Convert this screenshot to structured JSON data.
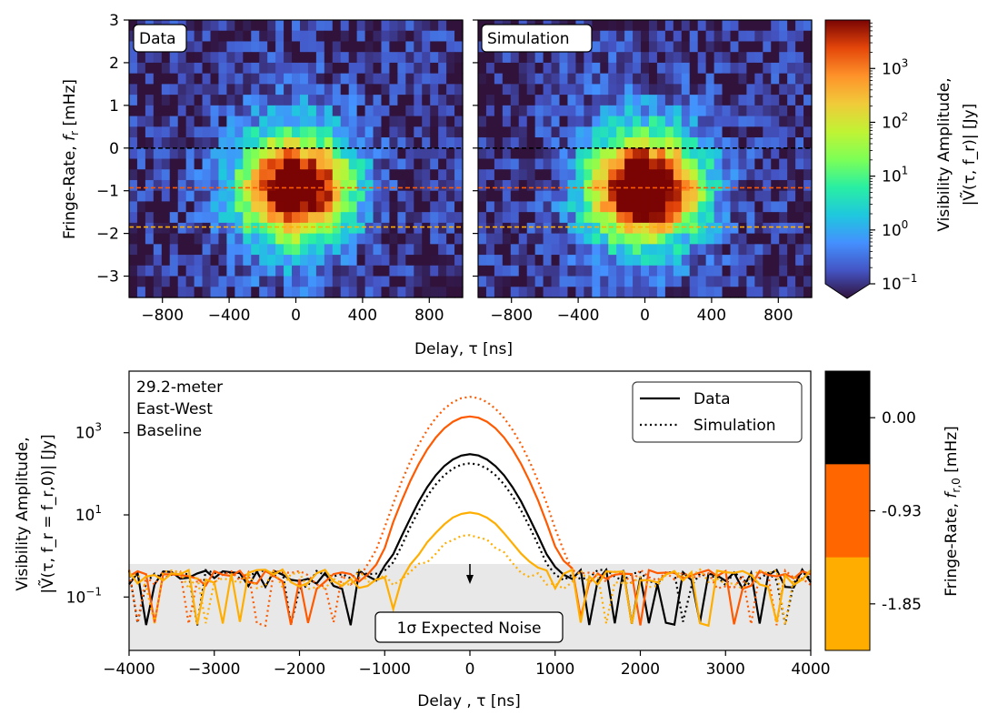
{
  "chart_data": [
    {
      "type": "heatmap",
      "panel_label": "Data",
      "xlabel": "Delay, τ [ns]",
      "ylabel_prefix": "Fringe-Rate, ",
      "ylabel_var": "f",
      "ylabel_sub": "r",
      "ylabel_unit": " [mHz]",
      "x_ticks": [
        "−800",
        "−400",
        "0",
        "400",
        "800"
      ],
      "x_tick_values": [
        -800,
        -400,
        0,
        400,
        800
      ],
      "y_ticks": [
        "3",
        "2",
        "1",
        "0",
        "−1",
        "−2",
        "−3"
      ],
      "y_tick_values": [
        3,
        2,
        1,
        0,
        -1,
        -2,
        -3
      ],
      "xlim": [
        -1000,
        1000
      ],
      "ylim": [
        -3.5,
        3
      ],
      "peak_center": {
        "delay": 0,
        "fringe_rate": -0.93
      },
      "peak_log10_amplitude": 3.4,
      "noise_log10_amplitude": -0.8,
      "hlines": [
        {
          "fringe_rate": 0.0,
          "color": "#000000"
        },
        {
          "fringe_rate": -0.93,
          "color": "#ff5a00"
        },
        {
          "fringe_rate": -1.85,
          "color": "#ffae00"
        }
      ]
    },
    {
      "type": "heatmap",
      "panel_label": "Simulation",
      "x_ticks": [
        "−800",
        "−400",
        "0",
        "400",
        "800"
      ],
      "x_tick_values": [
        -800,
        -400,
        0,
        400,
        800
      ],
      "xlim": [
        -1000,
        1000
      ],
      "ylim": [
        -3.5,
        3
      ],
      "peak_center": {
        "delay": 0,
        "fringe_rate": -0.93
      },
      "peak_log10_amplitude": 3.8,
      "noise_log10_amplitude": -0.8,
      "hlines": [
        {
          "fringe_rate": 0.0,
          "color": "#000000"
        },
        {
          "fringe_rate": -0.93,
          "color": "#ff5a00"
        },
        {
          "fringe_rate": -1.85,
          "color": "#ffae00"
        }
      ]
    },
    {
      "type": "line",
      "xlabel": "Delay , τ [ns]",
      "ylabel_line1": "Visibility Amplitude,",
      "ylabel_line2": "|Ṽ(τ, f_r = f_r,0)| [Jy]",
      "annotation": "29.2-meter\nEast-West\nBaseline",
      "noise_label": "1σ Expected Noise",
      "noise_level": 0.3,
      "xlim": [
        -4000,
        4000
      ],
      "ylim_log10": [
        -2.3,
        4.5
      ],
      "x_ticks": [
        "−4000",
        "−3000",
        "−2000",
        "−1000",
        "0",
        "1000",
        "2000",
        "3000",
        "4000"
      ],
      "x_tick_values": [
        -4000,
        -3000,
        -2000,
        -1000,
        0,
        1000,
        2000,
        3000,
        4000
      ],
      "y_ticks": [
        "10",
        "10",
        "10"
      ],
      "y_tick_exponents": [
        "3",
        "1",
        "−1"
      ],
      "y_tick_values": [
        1000,
        10,
        0.1
      ],
      "legend": [
        {
          "label": "Data",
          "style": "solid"
        },
        {
          "label": "Simulation",
          "style": "dotted"
        }
      ],
      "series": [
        {
          "fringe_rate": "0.00",
          "color": "#000000",
          "data_peak": 300,
          "sim_peak": 180
        },
        {
          "fringe_rate": "-0.93",
          "color": "#ff5a00",
          "data_peak": 2500,
          "sim_peak": 7500
        },
        {
          "fringe_rate": "-1.85",
          "color": "#ffae00",
          "data_peak": 11,
          "sim_peak": 3
        }
      ]
    }
  ],
  "colorbar_top": {
    "label_line1": "Visibility Amplitude,",
    "label_line2": "|Ṽ(τ, f_r)| [Jy]",
    "ticks": [
      {
        "base": "10",
        "exp": "3",
        "log": 3
      },
      {
        "base": "10",
        "exp": "2",
        "log": 2
      },
      {
        "base": "10",
        "exp": "1",
        "log": 1
      },
      {
        "base": "10",
        "exp": "0",
        "log": 0
      },
      {
        "base": "10",
        "exp": "−1",
        "log": -1
      }
    ],
    "log_range": [
      -1,
      3.9
    ]
  },
  "colorbar_bottom": {
    "label": "Fringe-Rate, f_r,0 [mHz]",
    "label_prefix": "Fringe-Rate, ",
    "label_unit": " [mHz]",
    "ticks": [
      "0.00",
      "-0.93",
      "-1.85"
    ],
    "colors": [
      "#000000",
      "#ff6600",
      "#ffae00"
    ]
  }
}
